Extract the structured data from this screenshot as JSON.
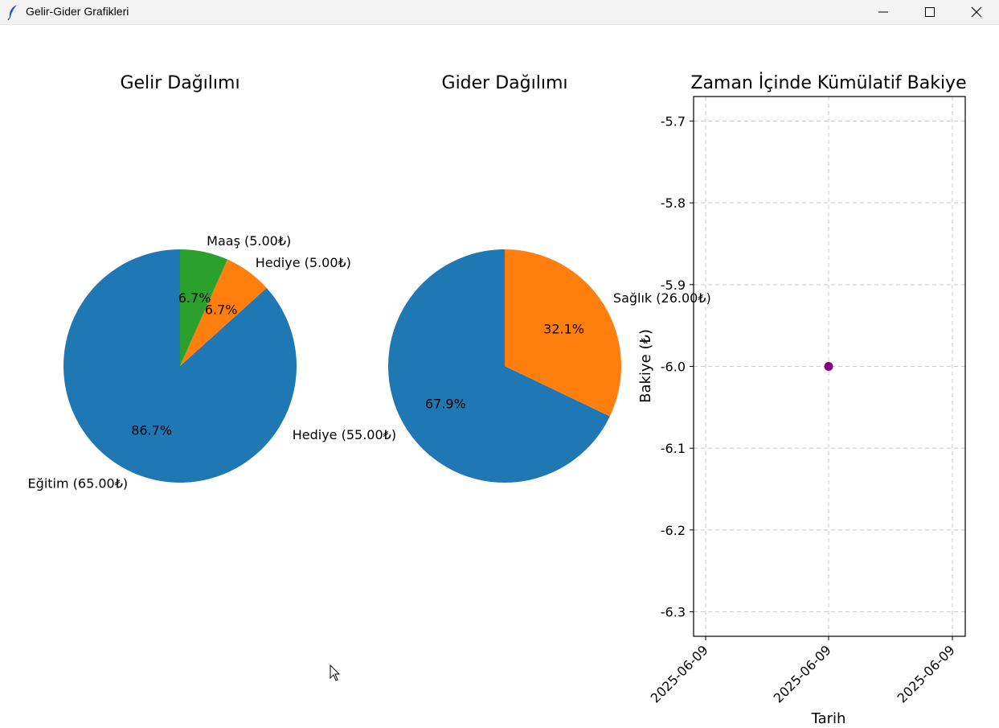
{
  "window": {
    "title": "Gelir-Gider Grafikleri",
    "icon": "feather-icon",
    "controls": [
      "minimize-icon",
      "maximize-icon",
      "close-icon"
    ]
  },
  "chart_data": [
    {
      "type": "pie",
      "title": "Gelir Dağılımı",
      "startangle": 90,
      "slices": [
        {
          "label": "Eğitim (65.00₺)",
          "value": 65.0,
          "pct_label": "86.7%",
          "color": "#1f77b4"
        },
        {
          "label": "Hediye (5.00₺)",
          "value": 5.0,
          "pct_label": "6.7%",
          "color": "#ff7f0e"
        },
        {
          "label": "Maaş (5.00₺)",
          "value": 5.0,
          "pct_label": "6.7%",
          "color": "#2ca02c"
        }
      ]
    },
    {
      "type": "pie",
      "title": "Gider Dağılımı",
      "startangle": 90,
      "slices": [
        {
          "label": "Hediye (55.00₺)",
          "value": 55.0,
          "pct_label": "67.9%",
          "color": "#1f77b4"
        },
        {
          "label": "Sağlık (26.00₺)",
          "value": 26.0,
          "pct_label": "32.1%",
          "color": "#ff7f0e"
        }
      ]
    },
    {
      "type": "line",
      "title": "Zaman İçinde Kümülatif Bakiye",
      "xlabel": "Tarih",
      "ylabel": "Bakiye (₺)",
      "xticks": [
        "2025-06-09",
        "2025-06-09",
        "2025-06-09"
      ],
      "yticks": [
        -5.7,
        -5.8,
        -5.9,
        -6.0,
        -6.1,
        -6.2,
        -6.3
      ],
      "ylim": [
        -6.33,
        -5.67
      ],
      "grid": true,
      "series": [
        {
          "x": [
            "2025-06-09"
          ],
          "y": [
            -6.0
          ],
          "color": "#800080",
          "marker": "o"
        }
      ]
    }
  ]
}
